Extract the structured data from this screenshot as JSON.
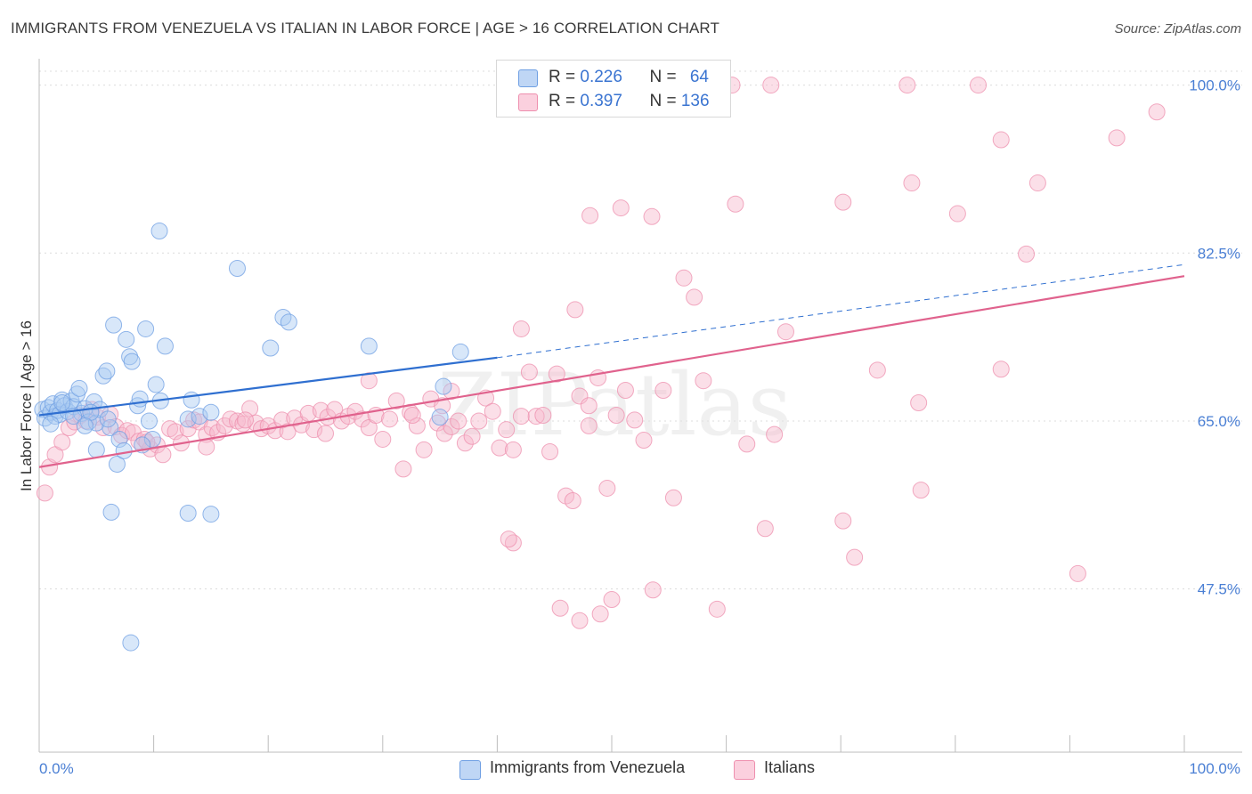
{
  "title": "IMMIGRANTS FROM VENEZUELA VS ITALIAN IN LABOR FORCE | AGE > 16 CORRELATION CHART",
  "source": "Source: ZipAtlas.com",
  "watermark": "ZIPatlas",
  "legend_top": [
    {
      "r_label": "R = ",
      "r_value": "0.226",
      "n_label": "N = ",
      "n_value": "64",
      "color": "#a9c9f2"
    },
    {
      "r_label": "R = ",
      "r_value": "0.397",
      "n_label": "N = ",
      "n_value": "136",
      "color": "#f7b9cc"
    }
  ],
  "legend_bottom": [
    {
      "label": "Immigrants from Venezuela",
      "color": "#a9c9f2"
    },
    {
      "label": "Italians",
      "color": "#f7b9cc"
    }
  ],
  "chart_data": {
    "type": "scatter",
    "xlabel": "",
    "ylabel": "In Labor Force | Age > 16",
    "x_tick_labels": [
      "0.0%",
      "100.0%"
    ],
    "y_tick_labels": [
      "100.0%",
      "82.5%",
      "65.0%",
      "47.5%"
    ],
    "xlim": [
      0,
      100
    ],
    "ylim": [
      30.5,
      102
    ],
    "grid": true,
    "legend_placement": "top-center",
    "series": [
      {
        "name": "Immigrants from Venezuela",
        "color": "#6f9fe3",
        "fill": "#a9c9f2",
        "trend": {
          "x0": 0,
          "y0": 65.6,
          "x1": 40,
          "y1": 71.6,
          "dashed_to_x": 100,
          "dashed_to_y": 81.3,
          "color": "#2f6fd0"
        },
        "points": [
          [
            0.3,
            66.2
          ],
          [
            0.5,
            65.3
          ],
          [
            0.8,
            66.4
          ],
          [
            1,
            65.9
          ],
          [
            1.2,
            66.8
          ],
          [
            1.4,
            65.5
          ],
          [
            1.6,
            66.1
          ],
          [
            1.8,
            65.7
          ],
          [
            2,
            67.2
          ],
          [
            2.2,
            66.6
          ],
          [
            2.5,
            66
          ],
          [
            2.8,
            67.1
          ],
          [
            3,
            66.5
          ],
          [
            3.3,
            67.8
          ],
          [
            3.5,
            68.4
          ],
          [
            3.7,
            65.8
          ],
          [
            4,
            66.3
          ],
          [
            4.3,
            64.9
          ],
          [
            4.8,
            67
          ],
          [
            5,
            64.8
          ],
          [
            5.3,
            66.2
          ],
          [
            5.6,
            69.7
          ],
          [
            5.9,
            70.2
          ],
          [
            6.2,
            64.3
          ],
          [
            6.5,
            75
          ],
          [
            6.8,
            60.5
          ],
          [
            7,
            63.1
          ],
          [
            7.4,
            61.9
          ],
          [
            7.6,
            73.5
          ],
          [
            7.9,
            71.7
          ],
          [
            8.1,
            71.2
          ],
          [
            8.6,
            66.6
          ],
          [
            8.8,
            67.3
          ],
          [
            9.3,
            74.6
          ],
          [
            9.6,
            65
          ],
          [
            9.9,
            63.1
          ],
          [
            10.2,
            68.8
          ],
          [
            10.6,
            67.1
          ],
          [
            11,
            72.8
          ],
          [
            13,
            65.2
          ],
          [
            13.3,
            67.2
          ],
          [
            14,
            65.5
          ],
          [
            15,
            65.9
          ],
          [
            17.3,
            80.9
          ],
          [
            20.2,
            72.6
          ],
          [
            21.3,
            75.8
          ],
          [
            21.8,
            75.3
          ],
          [
            28.8,
            72.8
          ],
          [
            35.3,
            68.6
          ],
          [
            36.8,
            72.2
          ],
          [
            35,
            65.4
          ],
          [
            5,
            62
          ],
          [
            8,
            41.9
          ],
          [
            6.3,
            55.5
          ],
          [
            13,
            55.4
          ],
          [
            15,
            55.3
          ],
          [
            10.5,
            84.8
          ],
          [
            1,
            64.7
          ],
          [
            3,
            65.5
          ],
          [
            4.5,
            65.9
          ],
          [
            6,
            65.2
          ],
          [
            2,
            66.9
          ],
          [
            4,
            64.5
          ],
          [
            9,
            62.5
          ]
        ]
      },
      {
        "name": "Italians",
        "color": "#ee8fae",
        "fill": "#f7b9cc",
        "trend": {
          "x0": 0,
          "y0": 60.2,
          "x1": 100,
          "y1": 80.1,
          "color": "#e0628d"
        },
        "points": [
          [
            0.5,
            57.5
          ],
          [
            0.9,
            60.2
          ],
          [
            1.4,
            61.5
          ],
          [
            2,
            62.8
          ],
          [
            2.6,
            64.3
          ],
          [
            3.1,
            64.9
          ],
          [
            3.6,
            65.6
          ],
          [
            4.1,
            65
          ],
          [
            4.6,
            66.2
          ],
          [
            5.1,
            65.4
          ],
          [
            5.6,
            64.3
          ],
          [
            6.2,
            65.7
          ],
          [
            6.7,
            64.4
          ],
          [
            7.2,
            63.5
          ],
          [
            7.7,
            64
          ],
          [
            8.2,
            63.8
          ],
          [
            8.7,
            62.9
          ],
          [
            9.2,
            63.1
          ],
          [
            9.7,
            62.1
          ],
          [
            10.3,
            62.5
          ],
          [
            10.8,
            61.5
          ],
          [
            11.4,
            64.2
          ],
          [
            11.9,
            63.9
          ],
          [
            12.4,
            62.7
          ],
          [
            13,
            64.2
          ],
          [
            13.5,
            65.1
          ],
          [
            14,
            64.9
          ],
          [
            14.6,
            63.6
          ],
          [
            15.1,
            64.3
          ],
          [
            15.6,
            63.8
          ],
          [
            16.2,
            64.5
          ],
          [
            16.7,
            65.2
          ],
          [
            17.3,
            65
          ],
          [
            17.8,
            64.7
          ],
          [
            18.4,
            66.3
          ],
          [
            18.9,
            64.8
          ],
          [
            19.4,
            64.2
          ],
          [
            20,
            64.5
          ],
          [
            20.6,
            64
          ],
          [
            21.2,
            65.1
          ],
          [
            21.7,
            63.9
          ],
          [
            22.3,
            65.3
          ],
          [
            22.9,
            64.6
          ],
          [
            23.5,
            65.8
          ],
          [
            24,
            64.1
          ],
          [
            24.6,
            66.1
          ],
          [
            25.2,
            65.4
          ],
          [
            25.8,
            66.2
          ],
          [
            26.4,
            65
          ],
          [
            27,
            65.5
          ],
          [
            27.6,
            66
          ],
          [
            28.2,
            65.2
          ],
          [
            28.8,
            64.3
          ],
          [
            29.4,
            65.6
          ],
          [
            30,
            63.1
          ],
          [
            30.6,
            65.2
          ],
          [
            31.2,
            67.1
          ],
          [
            31.8,
            60
          ],
          [
            32.4,
            65.9
          ],
          [
            33,
            64.5
          ],
          [
            33.6,
            62
          ],
          [
            34.2,
            67.3
          ],
          [
            34.8,
            64.8
          ],
          [
            35.4,
            63.7
          ],
          [
            36,
            64.4
          ],
          [
            36.6,
            65
          ],
          [
            37.2,
            62.7
          ],
          [
            37.8,
            63.4
          ],
          [
            38.4,
            65
          ],
          [
            39,
            67.4
          ],
          [
            39.6,
            66
          ],
          [
            40.2,
            62.2
          ],
          [
            40.8,
            64.1
          ],
          [
            41.4,
            62
          ],
          [
            42.1,
            65.5
          ],
          [
            42.8,
            70.1
          ],
          [
            43.4,
            65.5
          ],
          [
            44,
            65.6
          ],
          [
            44.6,
            61.8
          ],
          [
            45.2,
            69.9
          ],
          [
            46,
            57.2
          ],
          [
            46.6,
            56.7
          ],
          [
            47.2,
            67.6
          ],
          [
            48,
            66.6
          ],
          [
            48.8,
            69.5
          ],
          [
            49.6,
            58
          ],
          [
            50.4,
            65.6
          ],
          [
            51.2,
            68.2
          ],
          [
            52,
            65.1
          ],
          [
            52.8,
            63
          ],
          [
            53.6,
            47.4
          ],
          [
            54.5,
            68.2
          ],
          [
            55.4,
            57
          ],
          [
            56.3,
            79.9
          ],
          [
            57.2,
            77.9
          ],
          [
            58,
            69.2
          ],
          [
            59.2,
            45.4
          ],
          [
            61.8,
            62.6
          ],
          [
            63.4,
            53.8
          ],
          [
            64.2,
            63.6
          ],
          [
            65.2,
            74.3
          ],
          [
            70.2,
            54.6
          ],
          [
            71.2,
            50.8
          ],
          [
            73.2,
            70.3
          ],
          [
            76.8,
            66.9
          ],
          [
            84,
            94.3
          ],
          [
            86.2,
            82.4
          ],
          [
            94.1,
            94.5
          ],
          [
            97.6,
            97.2
          ],
          [
            87.2,
            89.8
          ],
          [
            70.2,
            87.8
          ],
          [
            80.2,
            86.6
          ],
          [
            76.2,
            89.8
          ],
          [
            84,
            70.4
          ],
          [
            77,
            57.8
          ],
          [
            90.7,
            49.1
          ],
          [
            50.8,
            87.2
          ],
          [
            53.5,
            86.3
          ],
          [
            60.8,
            87.6
          ],
          [
            48.1,
            86.4
          ],
          [
            46.8,
            76.6
          ],
          [
            42.1,
            74.6
          ],
          [
            35.2,
            66.6
          ],
          [
            41.4,
            52.3
          ],
          [
            45.5,
            45.5
          ],
          [
            49,
            44.9
          ],
          [
            47.2,
            44.2
          ],
          [
            41,
            52.7
          ],
          [
            50,
            46.4
          ],
          [
            48,
            64.5
          ],
          [
            36,
            68.1
          ],
          [
            32.6,
            65.6
          ],
          [
            28.8,
            69.2
          ],
          [
            25,
            63.7
          ],
          [
            14.6,
            62.3
          ],
          [
            9.4,
            62.8
          ],
          [
            18,
            65.1
          ],
          [
            56.7,
            99.4
          ],
          [
            63.9,
            100
          ],
          [
            60.5,
            100
          ],
          [
            75.8,
            100
          ],
          [
            82,
            100
          ]
        ]
      }
    ]
  }
}
